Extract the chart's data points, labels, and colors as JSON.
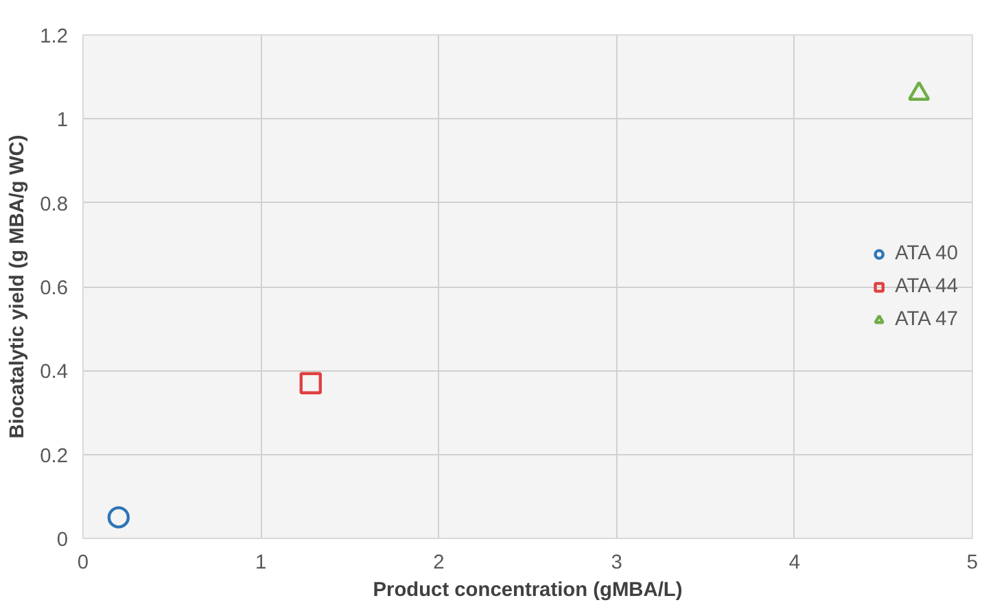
{
  "chart_data": {
    "type": "scatter",
    "xlabel": "Product concentration (gMBA/L)",
    "ylabel": "Biocatalytic yield (g MBA/g WC)",
    "series": [
      {
        "name": "ATA 40",
        "color": "#2e75b6",
        "marker": "circle",
        "x": [
          0.2
        ],
        "values": [
          0.05
        ]
      },
      {
        "name": "ATA 44",
        "color": "#e04040",
        "marker": "square",
        "x": [
          1.28
        ],
        "values": [
          0.37
        ]
      },
      {
        "name": "ATA 47",
        "color": "#70ad47",
        "marker": "triangle",
        "x": [
          4.7
        ],
        "values": [
          1.06
        ]
      }
    ],
    "xlim": [
      0,
      5
    ],
    "xticks": [
      0,
      1,
      2,
      3,
      4,
      5
    ],
    "ylim": [
      0,
      1.2
    ],
    "yticks": [
      0,
      0.2,
      0.4,
      0.6,
      0.8,
      1,
      1.2
    ],
    "grid": true,
    "legend": "right"
  }
}
